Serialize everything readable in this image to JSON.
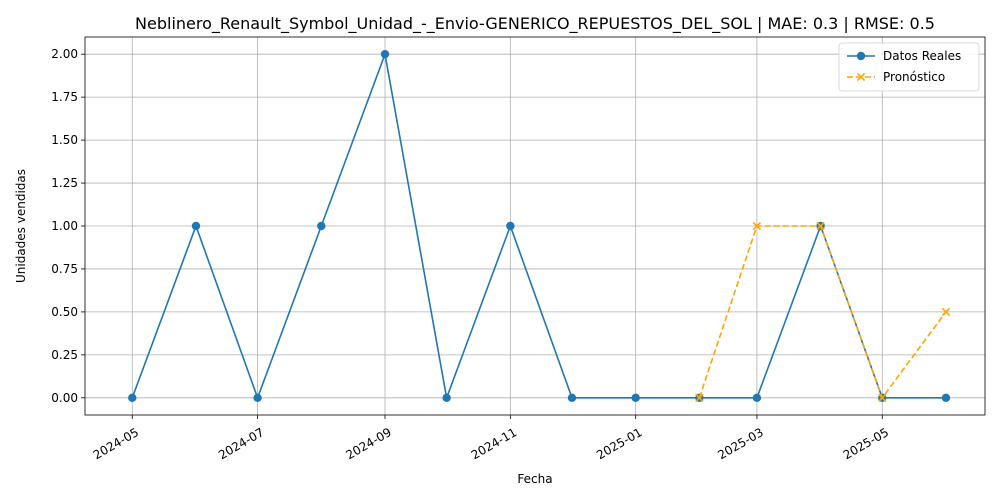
{
  "chart_data": {
    "type": "line",
    "title": "Neblinero_Renault_Symbol_Unidad_-_Envio-GENERICO_REPUESTOS_DEL_SOL | MAE: 0.3 | RMSE: 0.5",
    "xlabel": "Fecha",
    "ylabel": "Unidades vendidas",
    "x_ticks": [
      "2024-05-01",
      "2024-07-01",
      "2024-09-01",
      "2024-11-01",
      "2025-01-01",
      "2025-03-01",
      "2025-05-01"
    ],
    "x_tick_labels": [
      "2024-05",
      "2024-07",
      "2024-09",
      "2024-11",
      "2025-01",
      "2025-03",
      "2025-05"
    ],
    "y_ticks": [
      0.0,
      0.25,
      0.5,
      0.75,
      1.0,
      1.25,
      1.5,
      1.75,
      2.0
    ],
    "y_tick_labels": [
      "0.00",
      "0.25",
      "0.50",
      "0.75",
      "1.00",
      "1.25",
      "1.50",
      "1.75",
      "2.00"
    ],
    "xlim": [
      "2024-04-08",
      "2025-06-20"
    ],
    "ylim": [
      -0.1,
      2.1
    ],
    "grid": true,
    "legend_position": "top-right",
    "series": [
      {
        "name": "Datos Reales",
        "color": "#1f77b4",
        "style": "solid",
        "marker": "circle",
        "x": [
          "2024-05-01",
          "2024-06-01",
          "2024-07-01",
          "2024-08-01",
          "2024-09-01",
          "2024-10-01",
          "2024-11-01",
          "2024-12-01",
          "2025-01-01",
          "2025-02-01",
          "2025-03-01",
          "2025-04-01",
          "2025-05-01",
          "2025-06-01"
        ],
        "values": [
          0,
          1,
          0,
          1,
          2,
          0,
          1,
          0,
          0,
          0,
          0,
          1,
          0,
          0
        ]
      },
      {
        "name": "Pronóstico",
        "color": "#ffa500",
        "style": "dashed",
        "marker": "x",
        "x": [
          "2025-02-01",
          "2025-03-01",
          "2025-04-01",
          "2025-05-01",
          "2025-06-01"
        ],
        "values": [
          0,
          1,
          1,
          0,
          0.5
        ]
      }
    ]
  }
}
